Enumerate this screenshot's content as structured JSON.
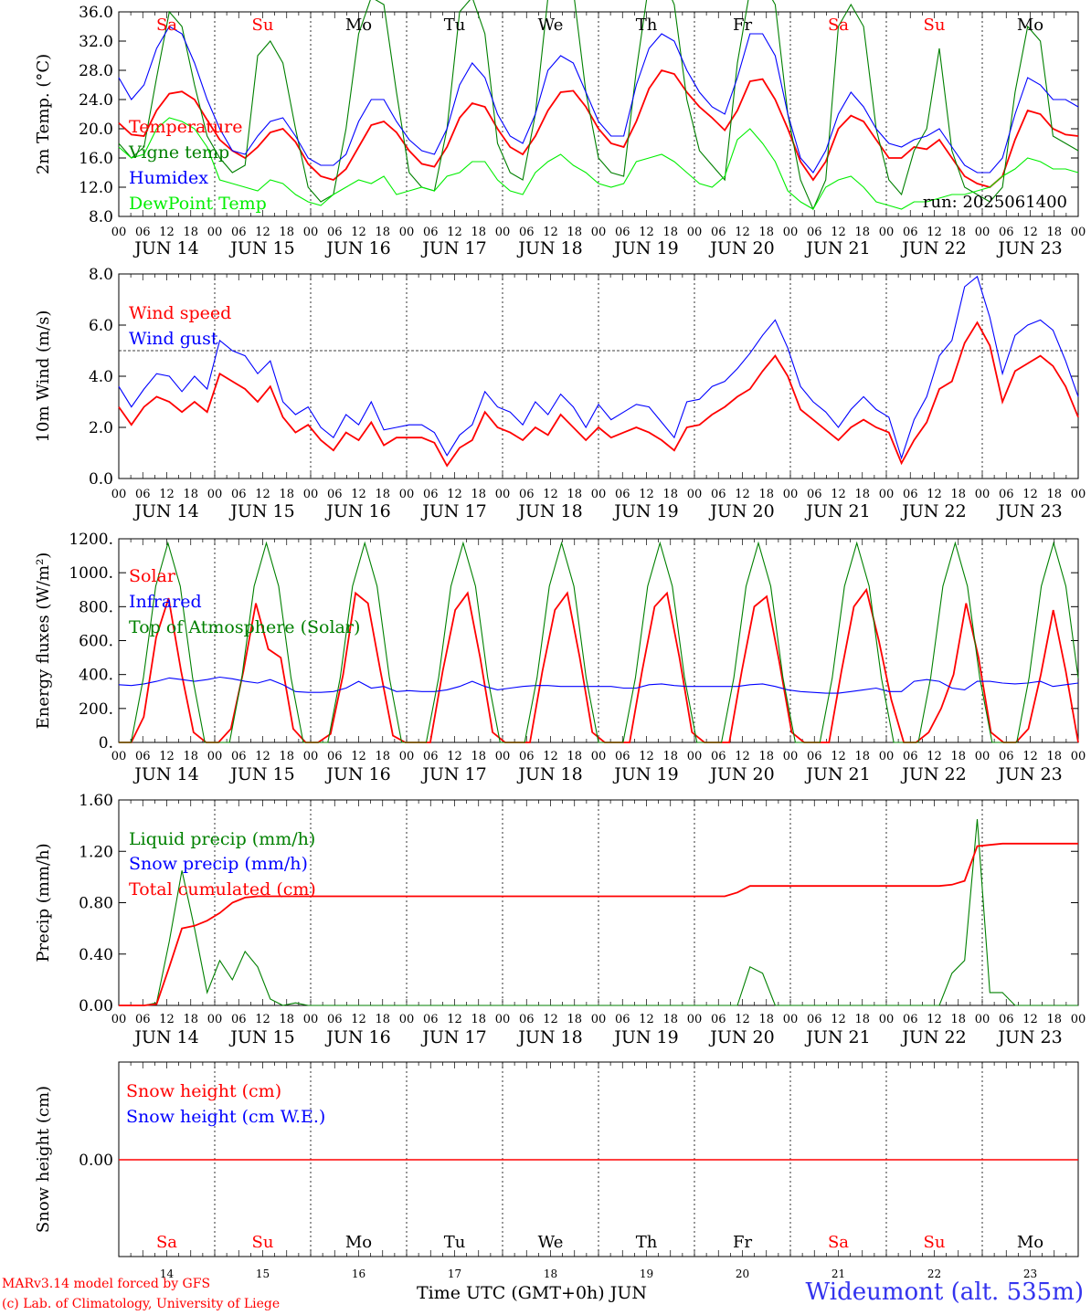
{
  "meta": {
    "model_line": "MARv3.14 model forced by GFS",
    "copyright_line": "(c) Lab. of Climatology, University of Liege",
    "station": "Wideumont (alt. 535m)",
    "time_axis_label": "Time UTC (GMT+0h) JUN",
    "run": "run: 2025061400"
  },
  "day_names": [
    "Sa",
    "Su",
    "Mo",
    "Tu",
    "We",
    "Th",
    "Fr",
    "Sa",
    "Su",
    "Mo"
  ],
  "weekend_days": [
    0,
    1,
    7,
    8
  ],
  "date_labels": [
    "JUN 14",
    "JUN 15",
    "JUN 16",
    "JUN 17",
    "JUN 18",
    "JUN 19",
    "JUN 20",
    "JUN 21",
    "JUN 22",
    "JUN 23"
  ],
  "day_numbers": [
    "14",
    "15",
    "16",
    "17",
    "18",
    "19",
    "20",
    "21",
    "22",
    "23"
  ],
  "hour_ticks": [
    "00",
    "06",
    "12",
    "18"
  ],
  "last_hour_tick": "00",
  "colors": {
    "red": "#ff0000",
    "blue": "#0000ff",
    "green": "#008000",
    "lime": "#00ee00",
    "black": "#000000"
  },
  "chart_data": [
    {
      "type": "line",
      "ylabel": "2m Temp. (°C)",
      "ylim": [
        8,
        36
      ],
      "yticks": [
        "8.0",
        "12.0",
        "16.0",
        "20.0",
        "24.0",
        "28.0",
        "32.0",
        "36.0"
      ],
      "x": "hours since 14 JUN 00 UTC, 3-hour steps, 0-240",
      "series": [
        {
          "name": "Temperature",
          "color": "red",
          "values": [
            20.8,
            19.2,
            19.0,
            22.5,
            24.8,
            25.1,
            24.0,
            21.2,
            18.5,
            17.0,
            16.0,
            17.5,
            19.5,
            20.0,
            18.2,
            15.2,
            13.5,
            13.0,
            14.5,
            17.5,
            20.5,
            21.0,
            19.5,
            17.0,
            15.2,
            14.8,
            17.5,
            21.5,
            23.5,
            23.0,
            20.0,
            17.5,
            16.5,
            19.0,
            22.5,
            25.0,
            25.2,
            23.0,
            20.0,
            18.0,
            17.5,
            21.0,
            25.5,
            28.0,
            27.5,
            25.0,
            23.0,
            21.5,
            19.8,
            22.5,
            26.5,
            26.8,
            24.0,
            20.0,
            15.5,
            13.0,
            15.5,
            20.0,
            21.8,
            21.0,
            18.5,
            16.0,
            16.0,
            17.5,
            17.2,
            18.5,
            16.0,
            13.5,
            12.5,
            12.0,
            13.5,
            18.5,
            22.5,
            22.0,
            20.0,
            19.2,
            19.0
          ]
        },
        {
          "name": "Vigne temp",
          "color": "green",
          "values": [
            18.0,
            16.0,
            17.5,
            27.0,
            36.0,
            34.0,
            26.0,
            19.0,
            16.0,
            14.0,
            15.0,
            30.0,
            32.0,
            29.0,
            20.0,
            12.0,
            10.0,
            11.0,
            20.0,
            33.0,
            38.0,
            37.0,
            25.0,
            14.0,
            12.0,
            11.5,
            20.0,
            36.0,
            38.0,
            33.0,
            18.0,
            14.0,
            13.0,
            22.0,
            38.0,
            40.0,
            39.0,
            25.0,
            16.0,
            14.0,
            13.5,
            28.0,
            40.0,
            41.0,
            37.0,
            24.0,
            17.0,
            15.0,
            13.0,
            29.0,
            39.0,
            40.0,
            37.0,
            22.0,
            13.0,
            9.0,
            13.0,
            34.0,
            37.0,
            34.0,
            20.0,
            13.0,
            11.0,
            17.0,
            20.0,
            31.0,
            17.0,
            12.0,
            11.0,
            10.0,
            12.0,
            25.0,
            34.0,
            32.0,
            19.0,
            18.0,
            17.0
          ]
        },
        {
          "name": "Humidex",
          "color": "blue",
          "values": [
            27.0,
            24.0,
            26.0,
            31.0,
            34.0,
            33.0,
            29.0,
            24.0,
            20.0,
            17.0,
            16.5,
            19.0,
            21.0,
            21.5,
            19.0,
            16.0,
            15.0,
            15.0,
            16.5,
            21.0,
            24.0,
            24.0,
            21.0,
            18.5,
            17.0,
            16.5,
            20.0,
            26.0,
            29.0,
            27.0,
            22.0,
            19.0,
            18.0,
            22.0,
            28.0,
            30.0,
            29.0,
            25.0,
            21.0,
            19.0,
            19.0,
            26.0,
            31.0,
            33.0,
            32.0,
            28.0,
            25.0,
            23.0,
            22.0,
            27.0,
            33.0,
            33.0,
            30.0,
            22.0,
            16.0,
            14.0,
            17.0,
            22.0,
            25.0,
            23.0,
            20.0,
            18.0,
            17.5,
            18.5,
            19.0,
            20.0,
            17.5,
            15.0,
            14.0,
            14.0,
            16.0,
            22.0,
            27.0,
            26.0,
            24.0,
            24.0,
            23.0
          ]
        },
        {
          "name": "DewPoint Temp",
          "color": "lime",
          "values": [
            17.5,
            16.0,
            16.5,
            20.0,
            21.5,
            21.0,
            20.0,
            17.5,
            13.0,
            12.5,
            12.0,
            11.5,
            13.0,
            12.5,
            11.0,
            10.0,
            9.5,
            11.0,
            12.0,
            13.0,
            12.5,
            13.5,
            11.0,
            11.5,
            12.0,
            11.5,
            13.5,
            14.0,
            15.5,
            15.5,
            13.0,
            11.5,
            11.0,
            14.0,
            15.5,
            16.5,
            15.0,
            14.0,
            12.5,
            12.0,
            12.5,
            15.5,
            16.0,
            16.5,
            15.5,
            14.0,
            12.5,
            12.0,
            13.5,
            18.5,
            20.0,
            18.0,
            15.5,
            11.5,
            10.0,
            9.0,
            12.0,
            13.0,
            13.5,
            12.0,
            10.0,
            9.5,
            9.0,
            10.0,
            10.0,
            10.5,
            11.0,
            11.0,
            11.5,
            12.0,
            13.5,
            14.5,
            16.0,
            15.5,
            14.5,
            14.5,
            14.0
          ]
        }
      ]
    },
    {
      "type": "line",
      "ylabel": "10m Wind (m/s)",
      "ylim": [
        0,
        8
      ],
      "yticks": [
        "0.0",
        "2.0",
        "4.0",
        "6.0",
        "8.0"
      ],
      "reference_line": 5,
      "series": [
        {
          "name": "Wind speed",
          "color": "red",
          "values": [
            2.8,
            2.1,
            2.8,
            3.2,
            3.0,
            2.6,
            3.0,
            2.6,
            4.1,
            3.8,
            3.5,
            3.0,
            3.6,
            2.4,
            1.8,
            2.1,
            1.5,
            1.1,
            1.8,
            1.5,
            2.2,
            1.3,
            1.6,
            1.6,
            1.6,
            1.4,
            0.5,
            1.2,
            1.5,
            2.6,
            2.0,
            1.8,
            1.5,
            2.0,
            1.7,
            2.5,
            2.0,
            1.5,
            2.0,
            1.6,
            1.8,
            2.0,
            1.8,
            1.5,
            1.1,
            2.0,
            2.1,
            2.5,
            2.8,
            3.2,
            3.5,
            4.2,
            4.8,
            4.0,
            2.7,
            2.3,
            1.9,
            1.5,
            2.0,
            2.3,
            2.0,
            1.8,
            0.6,
            1.5,
            2.2,
            3.5,
            3.8,
            5.3,
            6.1,
            5.2,
            3.0,
            4.2,
            4.5,
            4.8,
            4.4,
            3.6,
            2.4
          ]
        },
        {
          "name": "Wind gust",
          "color": "blue",
          "values": [
            3.6,
            2.8,
            3.5,
            4.1,
            4.0,
            3.4,
            4.0,
            3.5,
            5.4,
            5.0,
            4.8,
            4.1,
            4.6,
            3.0,
            2.5,
            2.8,
            2.0,
            1.6,
            2.5,
            2.1,
            3.0,
            1.9,
            2.0,
            2.1,
            2.1,
            1.8,
            0.9,
            1.7,
            2.1,
            3.4,
            2.8,
            2.6,
            2.1,
            3.0,
            2.5,
            3.3,
            2.8,
            2.0,
            2.9,
            2.3,
            2.6,
            2.9,
            2.8,
            2.2,
            1.6,
            3.0,
            3.1,
            3.6,
            3.8,
            4.3,
            4.9,
            5.6,
            6.2,
            5.1,
            3.6,
            3.0,
            2.6,
            2.0,
            2.7,
            3.2,
            2.7,
            2.4,
            0.8,
            2.3,
            3.2,
            4.8,
            5.4,
            7.5,
            7.9,
            6.3,
            4.1,
            5.6,
            6.0,
            6.2,
            5.8,
            4.6,
            3.2
          ]
        }
      ]
    },
    {
      "type": "line",
      "ylabel": "Energy fluxes (W/m²)",
      "ylim": [
        0,
        1200
      ],
      "yticks": [
        "0.",
        "200.",
        "400.",
        "600.",
        "800.",
        "1000.",
        "1200."
      ],
      "series": [
        {
          "name": "Solar",
          "color": "red",
          "values": [
            0,
            0,
            150,
            620,
            850,
            420,
            60,
            0,
            0,
            80,
            420,
            820,
            550,
            500,
            80,
            0,
            0,
            50,
            400,
            880,
            820,
            420,
            40,
            0,
            0,
            0,
            420,
            780,
            880,
            500,
            60,
            0,
            0,
            0,
            420,
            780,
            880,
            500,
            60,
            0,
            0,
            0,
            420,
            800,
            880,
            500,
            60,
            0,
            0,
            0,
            420,
            800,
            860,
            480,
            60,
            0,
            0,
            0,
            420,
            800,
            900,
            600,
            250,
            0,
            0,
            60,
            200,
            400,
            820,
            500,
            60,
            0,
            0,
            80,
            400,
            780,
            420,
            0
          ]
        },
        {
          "name": "Infrared",
          "color": "blue",
          "values": [
            340,
            335,
            345,
            360,
            380,
            370,
            360,
            370,
            385,
            375,
            360,
            350,
            370,
            340,
            300,
            295,
            295,
            300,
            320,
            360,
            320,
            330,
            300,
            305,
            300,
            300,
            310,
            330,
            360,
            330,
            310,
            320,
            330,
            335,
            335,
            330,
            330,
            330,
            330,
            330,
            320,
            320,
            340,
            345,
            335,
            330,
            330,
            330,
            330,
            330,
            340,
            345,
            330,
            310,
            300,
            295,
            290,
            290,
            300,
            310,
            320,
            300,
            300,
            360,
            370,
            360,
            320,
            310,
            360,
            360,
            350,
            345,
            350,
            360,
            330,
            340,
            350
          ]
        },
        {
          "name": "Top of Atmosphere (Solar)",
          "color": "green",
          "values": [
            0,
            0,
            380,
            920,
            1175,
            920,
            380,
            0,
            0,
            0,
            380,
            920,
            1175,
            920,
            380,
            0,
            0,
            0,
            380,
            920,
            1175,
            920,
            380,
            0,
            0,
            0,
            380,
            920,
            1175,
            920,
            380,
            0,
            0,
            0,
            380,
            920,
            1175,
            920,
            380,
            0,
            0,
            0,
            380,
            920,
            1175,
            920,
            380,
            0,
            0,
            0,
            380,
            920,
            1175,
            920,
            380,
            0,
            0,
            0,
            380,
            920,
            1175,
            920,
            380,
            0,
            0,
            0,
            380,
            920,
            1175,
            920,
            380,
            0,
            0,
            0,
            380,
            920,
            1175,
            920,
            380
          ]
        }
      ]
    },
    {
      "type": "line",
      "ylabel": "Precip (mm/h)",
      "ylim": [
        0,
        1.6
      ],
      "yticks": [
        "0.00",
        "0.40",
        "0.80",
        "1.20",
        "1.60"
      ],
      "series": [
        {
          "name": "Liquid precip (mm/h)",
          "color": "green",
          "values": [
            0,
            0,
            0,
            0.02,
            0.5,
            1.05,
            0.6,
            0.1,
            0.35,
            0.2,
            0.42,
            0.3,
            0.05,
            0,
            0.02,
            0,
            0,
            0,
            0,
            0,
            0,
            0,
            0,
            0,
            0,
            0,
            0,
            0,
            0,
            0,
            0,
            0,
            0,
            0,
            0,
            0,
            0,
            0,
            0,
            0,
            0,
            0,
            0,
            0,
            0,
            0,
            0,
            0,
            0,
            0,
            0.3,
            0.25,
            0,
            0,
            0,
            0,
            0,
            0,
            0,
            0,
            0,
            0,
            0,
            0,
            0,
            0,
            0.25,
            0.35,
            1.45,
            0.1,
            0.1,
            0,
            0,
            0,
            0,
            0,
            0
          ]
        },
        {
          "name": "Snow precip (mm/h)",
          "color": "blue",
          "values": []
        },
        {
          "name": "Total cumulated (cm)",
          "color": "red",
          "values": [
            0,
            0,
            0,
            0.01,
            0.3,
            0.6,
            0.62,
            0.66,
            0.72,
            0.8,
            0.84,
            0.85,
            0.85,
            0.85,
            0.85,
            0.85,
            0.85,
            0.85,
            0.85,
            0.85,
            0.85,
            0.85,
            0.85,
            0.85,
            0.85,
            0.85,
            0.85,
            0.85,
            0.85,
            0.85,
            0.85,
            0.85,
            0.85,
            0.85,
            0.85,
            0.85,
            0.85,
            0.85,
            0.85,
            0.85,
            0.85,
            0.85,
            0.85,
            0.85,
            0.85,
            0.85,
            0.85,
            0.85,
            0.85,
            0.88,
            0.93,
            0.93,
            0.93,
            0.93,
            0.93,
            0.93,
            0.93,
            0.93,
            0.93,
            0.93,
            0.93,
            0.93,
            0.93,
            0.93,
            0.93,
            0.93,
            0.94,
            0.97,
            1.24,
            1.25,
            1.26,
            1.26,
            1.26,
            1.26,
            1.26,
            1.26,
            1.26
          ]
        }
      ]
    },
    {
      "type": "line",
      "ylabel": "Snow height (cm)",
      "yticks": [
        "0.00"
      ],
      "series": [
        {
          "name": "Snow height (cm)",
          "color": "red",
          "values": [
            0,
            0
          ]
        },
        {
          "name": "Snow height (cm W.E.)",
          "color": "blue",
          "values": []
        }
      ]
    }
  ]
}
